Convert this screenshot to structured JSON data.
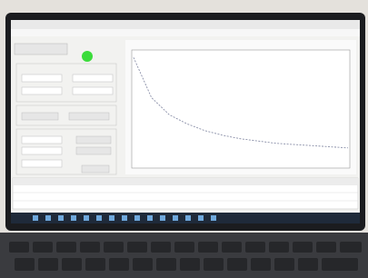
{
  "plot": {
    "type": "line",
    "values": [
      0.95,
      0.6,
      0.45,
      0.37,
      0.31,
      0.27,
      0.24,
      0.22,
      0.2,
      0.19,
      0.18,
      0.17,
      0.16
    ]
  }
}
